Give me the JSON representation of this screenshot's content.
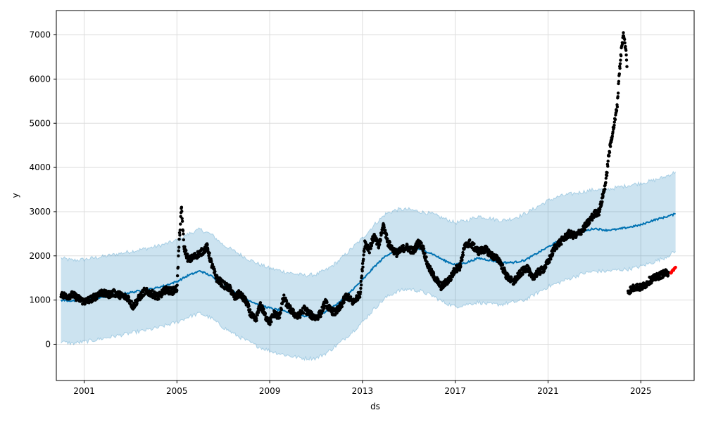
{
  "chart_data": {
    "type": "line",
    "xlabel": "ds",
    "ylabel": "y",
    "x_tick_labels": [
      "2001",
      "2005",
      "2009",
      "2013",
      "2017",
      "2021",
      "2025"
    ],
    "y_tick_labels": [
      "0",
      "1000",
      "2000",
      "3000",
      "4000",
      "5000",
      "6000",
      "7000"
    ],
    "x_ticks": [
      2001,
      2005,
      2009,
      2013,
      2017,
      2021,
      2025
    ],
    "y_ticks": [
      0,
      1000,
      2000,
      3000,
      4000,
      5000,
      6000,
      7000
    ],
    "xlim": [
      1999.8,
      2027.3
    ],
    "ylim": [
      -820,
      7550
    ],
    "grid": true,
    "series": [
      {
        "kind": "observed",
        "color": "#000000",
        "points": [
          [
            2000.0,
            1150
          ],
          [
            2000.2,
            1080
          ],
          [
            2000.5,
            1120
          ],
          [
            2000.8,
            1020
          ],
          [
            2001.0,
            960
          ],
          [
            2001.2,
            1000
          ],
          [
            2001.5,
            1080
          ],
          [
            2001.7,
            1180
          ],
          [
            2002.0,
            1120
          ],
          [
            2002.3,
            1160
          ],
          [
            2002.6,
            1100
          ],
          [
            2002.9,
            1050
          ],
          [
            2003.1,
            850
          ],
          [
            2003.3,
            1000
          ],
          [
            2003.6,
            1200
          ],
          [
            2003.9,
            1150
          ],
          [
            2004.2,
            1070
          ],
          [
            2004.5,
            1230
          ],
          [
            2004.8,
            1200
          ],
          [
            2005.0,
            1260
          ],
          [
            2005.1,
            2350
          ],
          [
            2005.2,
            3100
          ],
          [
            2005.3,
            2200
          ],
          [
            2005.5,
            1900
          ],
          [
            2005.8,
            2000
          ],
          [
            2006.1,
            2100
          ],
          [
            2006.3,
            2200
          ],
          [
            2006.5,
            1800
          ],
          [
            2006.7,
            1500
          ],
          [
            2007.0,
            1350
          ],
          [
            2007.3,
            1250
          ],
          [
            2007.5,
            1050
          ],
          [
            2007.7,
            1150
          ],
          [
            2008.0,
            950
          ],
          [
            2008.2,
            650
          ],
          [
            2008.4,
            550
          ],
          [
            2008.6,
            900
          ],
          [
            2008.8,
            650
          ],
          [
            2009.0,
            500
          ],
          [
            2009.2,
            700
          ],
          [
            2009.4,
            620
          ],
          [
            2009.6,
            1050
          ],
          [
            2009.8,
            850
          ],
          [
            2010.0,
            720
          ],
          [
            2010.2,
            620
          ],
          [
            2010.5,
            800
          ],
          [
            2010.8,
            650
          ],
          [
            2011.0,
            600
          ],
          [
            2011.2,
            700
          ],
          [
            2011.4,
            950
          ],
          [
            2011.6,
            780
          ],
          [
            2011.8,
            720
          ],
          [
            2012.0,
            800
          ],
          [
            2012.3,
            1100
          ],
          [
            2012.6,
            950
          ],
          [
            2012.9,
            1150
          ],
          [
            2013.1,
            2300
          ],
          [
            2013.3,
            2150
          ],
          [
            2013.5,
            2450
          ],
          [
            2013.7,
            2200
          ],
          [
            2013.9,
            2700
          ],
          [
            2014.1,
            2300
          ],
          [
            2014.3,
            2150
          ],
          [
            2014.5,
            2050
          ],
          [
            2014.7,
            2150
          ],
          [
            2014.9,
            2200
          ],
          [
            2015.2,
            2100
          ],
          [
            2015.4,
            2300
          ],
          [
            2015.6,
            2200
          ],
          [
            2015.8,
            1800
          ],
          [
            2016.0,
            1600
          ],
          [
            2016.2,
            1450
          ],
          [
            2016.4,
            1300
          ],
          [
            2016.6,
            1400
          ],
          [
            2016.8,
            1500
          ],
          [
            2017.0,
            1700
          ],
          [
            2017.2,
            1750
          ],
          [
            2017.4,
            2200
          ],
          [
            2017.6,
            2300
          ],
          [
            2017.8,
            2200
          ],
          [
            2018.0,
            2100
          ],
          [
            2018.3,
            2150
          ],
          [
            2018.6,
            2000
          ],
          [
            2018.9,
            1900
          ],
          [
            2019.2,
            1550
          ],
          [
            2019.5,
            1400
          ],
          [
            2019.8,
            1600
          ],
          [
            2020.1,
            1750
          ],
          [
            2020.3,
            1500
          ],
          [
            2020.5,
            1600
          ],
          [
            2020.8,
            1700
          ],
          [
            2021.0,
            1850
          ],
          [
            2021.3,
            2200
          ],
          [
            2021.6,
            2350
          ],
          [
            2021.9,
            2500
          ],
          [
            2022.2,
            2450
          ],
          [
            2022.5,
            2600
          ],
          [
            2022.8,
            2800
          ],
          [
            2023.0,
            2950
          ],
          [
            2023.2,
            3000
          ],
          [
            2023.3,
            3200
          ],
          [
            2023.5,
            3700
          ],
          [
            2023.6,
            4200
          ],
          [
            2023.75,
            4700
          ],
          [
            2023.9,
            5100
          ],
          [
            2024.0,
            5500
          ],
          [
            2024.05,
            6000
          ],
          [
            2024.15,
            6600
          ],
          [
            2024.25,
            7000
          ],
          [
            2024.35,
            6700
          ],
          [
            2024.4,
            6300
          ],
          [
            2024.45,
            1200
          ],
          [
            2024.6,
            1250
          ],
          [
            2024.8,
            1300
          ],
          [
            2025.0,
            1280
          ],
          [
            2025.2,
            1350
          ],
          [
            2025.4,
            1450
          ],
          [
            2025.6,
            1500
          ],
          [
            2025.8,
            1550
          ],
          [
            2026.0,
            1600
          ],
          [
            2026.2,
            1620
          ]
        ]
      },
      {
        "kind": "observed",
        "color": "#ff0000",
        "points": [
          [
            2026.3,
            1620
          ],
          [
            2026.35,
            1650
          ],
          [
            2026.4,
            1680
          ],
          [
            2026.45,
            1710
          ],
          [
            2026.5,
            1740
          ]
        ]
      },
      {
        "kind": "forecast",
        "color": "#0072b2",
        "points": [
          [
            2000.0,
            1000
          ],
          [
            2000.5,
            980
          ],
          [
            2001.0,
            1000
          ],
          [
            2001.5,
            1040
          ],
          [
            2002.0,
            1080
          ],
          [
            2002.5,
            1130
          ],
          [
            2003.0,
            1170
          ],
          [
            2003.5,
            1220
          ],
          [
            2004.0,
            1260
          ],
          [
            2004.5,
            1330
          ],
          [
            2005.0,
            1420
          ],
          [
            2005.5,
            1560
          ],
          [
            2006.0,
            1660
          ],
          [
            2006.5,
            1540
          ],
          [
            2007.0,
            1320
          ],
          [
            2007.5,
            1180
          ],
          [
            2008.0,
            1020
          ],
          [
            2008.5,
            900
          ],
          [
            2009.0,
            820
          ],
          [
            2009.5,
            760
          ],
          [
            2010.0,
            700
          ],
          [
            2010.5,
            640
          ],
          [
            2011.0,
            640
          ],
          [
            2011.5,
            760
          ],
          [
            2012.0,
            950
          ],
          [
            2012.5,
            1200
          ],
          [
            2013.0,
            1450
          ],
          [
            2013.5,
            1750
          ],
          [
            2014.0,
            2000
          ],
          [
            2014.5,
            2150
          ],
          [
            2015.0,
            2200
          ],
          [
            2015.5,
            2150
          ],
          [
            2016.0,
            2050
          ],
          [
            2016.5,
            1900
          ],
          [
            2017.0,
            1800
          ],
          [
            2017.5,
            1850
          ],
          [
            2018.0,
            1950
          ],
          [
            2018.5,
            1900
          ],
          [
            2019.0,
            1850
          ],
          [
            2019.5,
            1850
          ],
          [
            2020.0,
            1900
          ],
          [
            2020.5,
            2050
          ],
          [
            2021.0,
            2200
          ],
          [
            2021.5,
            2350
          ],
          [
            2022.0,
            2450
          ],
          [
            2022.5,
            2550
          ],
          [
            2023.0,
            2620
          ],
          [
            2023.5,
            2580
          ],
          [
            2024.0,
            2600
          ],
          [
            2024.5,
            2650
          ],
          [
            2025.0,
            2700
          ],
          [
            2025.5,
            2800
          ],
          [
            2026.0,
            2870
          ],
          [
            2026.5,
            2950
          ]
        ]
      },
      {
        "kind": "uncertainty-band",
        "color": "#0072b2",
        "upper": [
          [
            2000.0,
            1950
          ],
          [
            2000.5,
            1900
          ],
          [
            2001.0,
            1920
          ],
          [
            2001.5,
            1960
          ],
          [
            2002.0,
            2000
          ],
          [
            2002.5,
            2050
          ],
          [
            2003.0,
            2100
          ],
          [
            2003.5,
            2150
          ],
          [
            2004.0,
            2200
          ],
          [
            2004.5,
            2270
          ],
          [
            2005.0,
            2350
          ],
          [
            2005.5,
            2500
          ],
          [
            2006.0,
            2600
          ],
          [
            2006.5,
            2480
          ],
          [
            2007.0,
            2250
          ],
          [
            2007.5,
            2100
          ],
          [
            2008.0,
            1950
          ],
          [
            2008.5,
            1820
          ],
          [
            2009.0,
            1720
          ],
          [
            2009.5,
            1660
          ],
          [
            2010.0,
            1600
          ],
          [
            2010.5,
            1560
          ],
          [
            2011.0,
            1580
          ],
          [
            2011.5,
            1700
          ],
          [
            2012.0,
            1900
          ],
          [
            2012.5,
            2150
          ],
          [
            2013.0,
            2400
          ],
          [
            2013.5,
            2700
          ],
          [
            2014.0,
            2950
          ],
          [
            2014.5,
            3050
          ],
          [
            2015.0,
            3050
          ],
          [
            2015.5,
            3000
          ],
          [
            2016.0,
            2950
          ],
          [
            2016.5,
            2850
          ],
          [
            2017.0,
            2750
          ],
          [
            2017.5,
            2800
          ],
          [
            2018.0,
            2900
          ],
          [
            2018.5,
            2850
          ],
          [
            2019.0,
            2800
          ],
          [
            2019.5,
            2850
          ],
          [
            2020.0,
            2950
          ],
          [
            2020.5,
            3100
          ],
          [
            2021.0,
            3250
          ],
          [
            2021.5,
            3350
          ],
          [
            2022.0,
            3400
          ],
          [
            2022.5,
            3450
          ],
          [
            2023.0,
            3500
          ],
          [
            2023.5,
            3500
          ],
          [
            2024.0,
            3550
          ],
          [
            2024.5,
            3600
          ],
          [
            2025.0,
            3650
          ],
          [
            2025.5,
            3700
          ],
          [
            2026.0,
            3780
          ],
          [
            2026.5,
            3900
          ]
        ],
        "lower": [
          [
            2000.0,
            50
          ],
          [
            2000.5,
            20
          ],
          [
            2001.0,
            50
          ],
          [
            2001.5,
            100
          ],
          [
            2002.0,
            150
          ],
          [
            2002.5,
            200
          ],
          [
            2003.0,
            250
          ],
          [
            2003.5,
            300
          ],
          [
            2004.0,
            350
          ],
          [
            2004.5,
            420
          ],
          [
            2005.0,
            500
          ],
          [
            2005.5,
            620
          ],
          [
            2006.0,
            700
          ],
          [
            2006.5,
            580
          ],
          [
            2007.0,
            380
          ],
          [
            2007.5,
            220
          ],
          [
            2008.0,
            80
          ],
          [
            2008.5,
            -50
          ],
          [
            2009.0,
            -150
          ],
          [
            2009.5,
            -220
          ],
          [
            2010.0,
            -280
          ],
          [
            2010.5,
            -320
          ],
          [
            2011.0,
            -320
          ],
          [
            2011.5,
            -180
          ],
          [
            2012.0,
            20
          ],
          [
            2012.5,
            250
          ],
          [
            2013.0,
            500
          ],
          [
            2013.5,
            800
          ],
          [
            2014.0,
            1050
          ],
          [
            2014.5,
            1200
          ],
          [
            2015.0,
            1250
          ],
          [
            2015.5,
            1200
          ],
          [
            2016.0,
            1100
          ],
          [
            2016.5,
            950
          ],
          [
            2017.0,
            850
          ],
          [
            2017.5,
            900
          ],
          [
            2018.0,
            950
          ],
          [
            2018.5,
            900
          ],
          [
            2019.0,
            900
          ],
          [
            2019.5,
            950
          ],
          [
            2020.0,
            1000
          ],
          [
            2020.5,
            1150
          ],
          [
            2021.0,
            1300
          ],
          [
            2021.5,
            1400
          ],
          [
            2022.0,
            1500
          ],
          [
            2022.5,
            1600
          ],
          [
            2023.0,
            1650
          ],
          [
            2023.5,
            1650
          ],
          [
            2024.0,
            1680
          ],
          [
            2024.5,
            1700
          ],
          [
            2025.0,
            1760
          ],
          [
            2025.5,
            1850
          ],
          [
            2026.0,
            1950
          ],
          [
            2026.5,
            2100
          ]
        ]
      }
    ]
  }
}
